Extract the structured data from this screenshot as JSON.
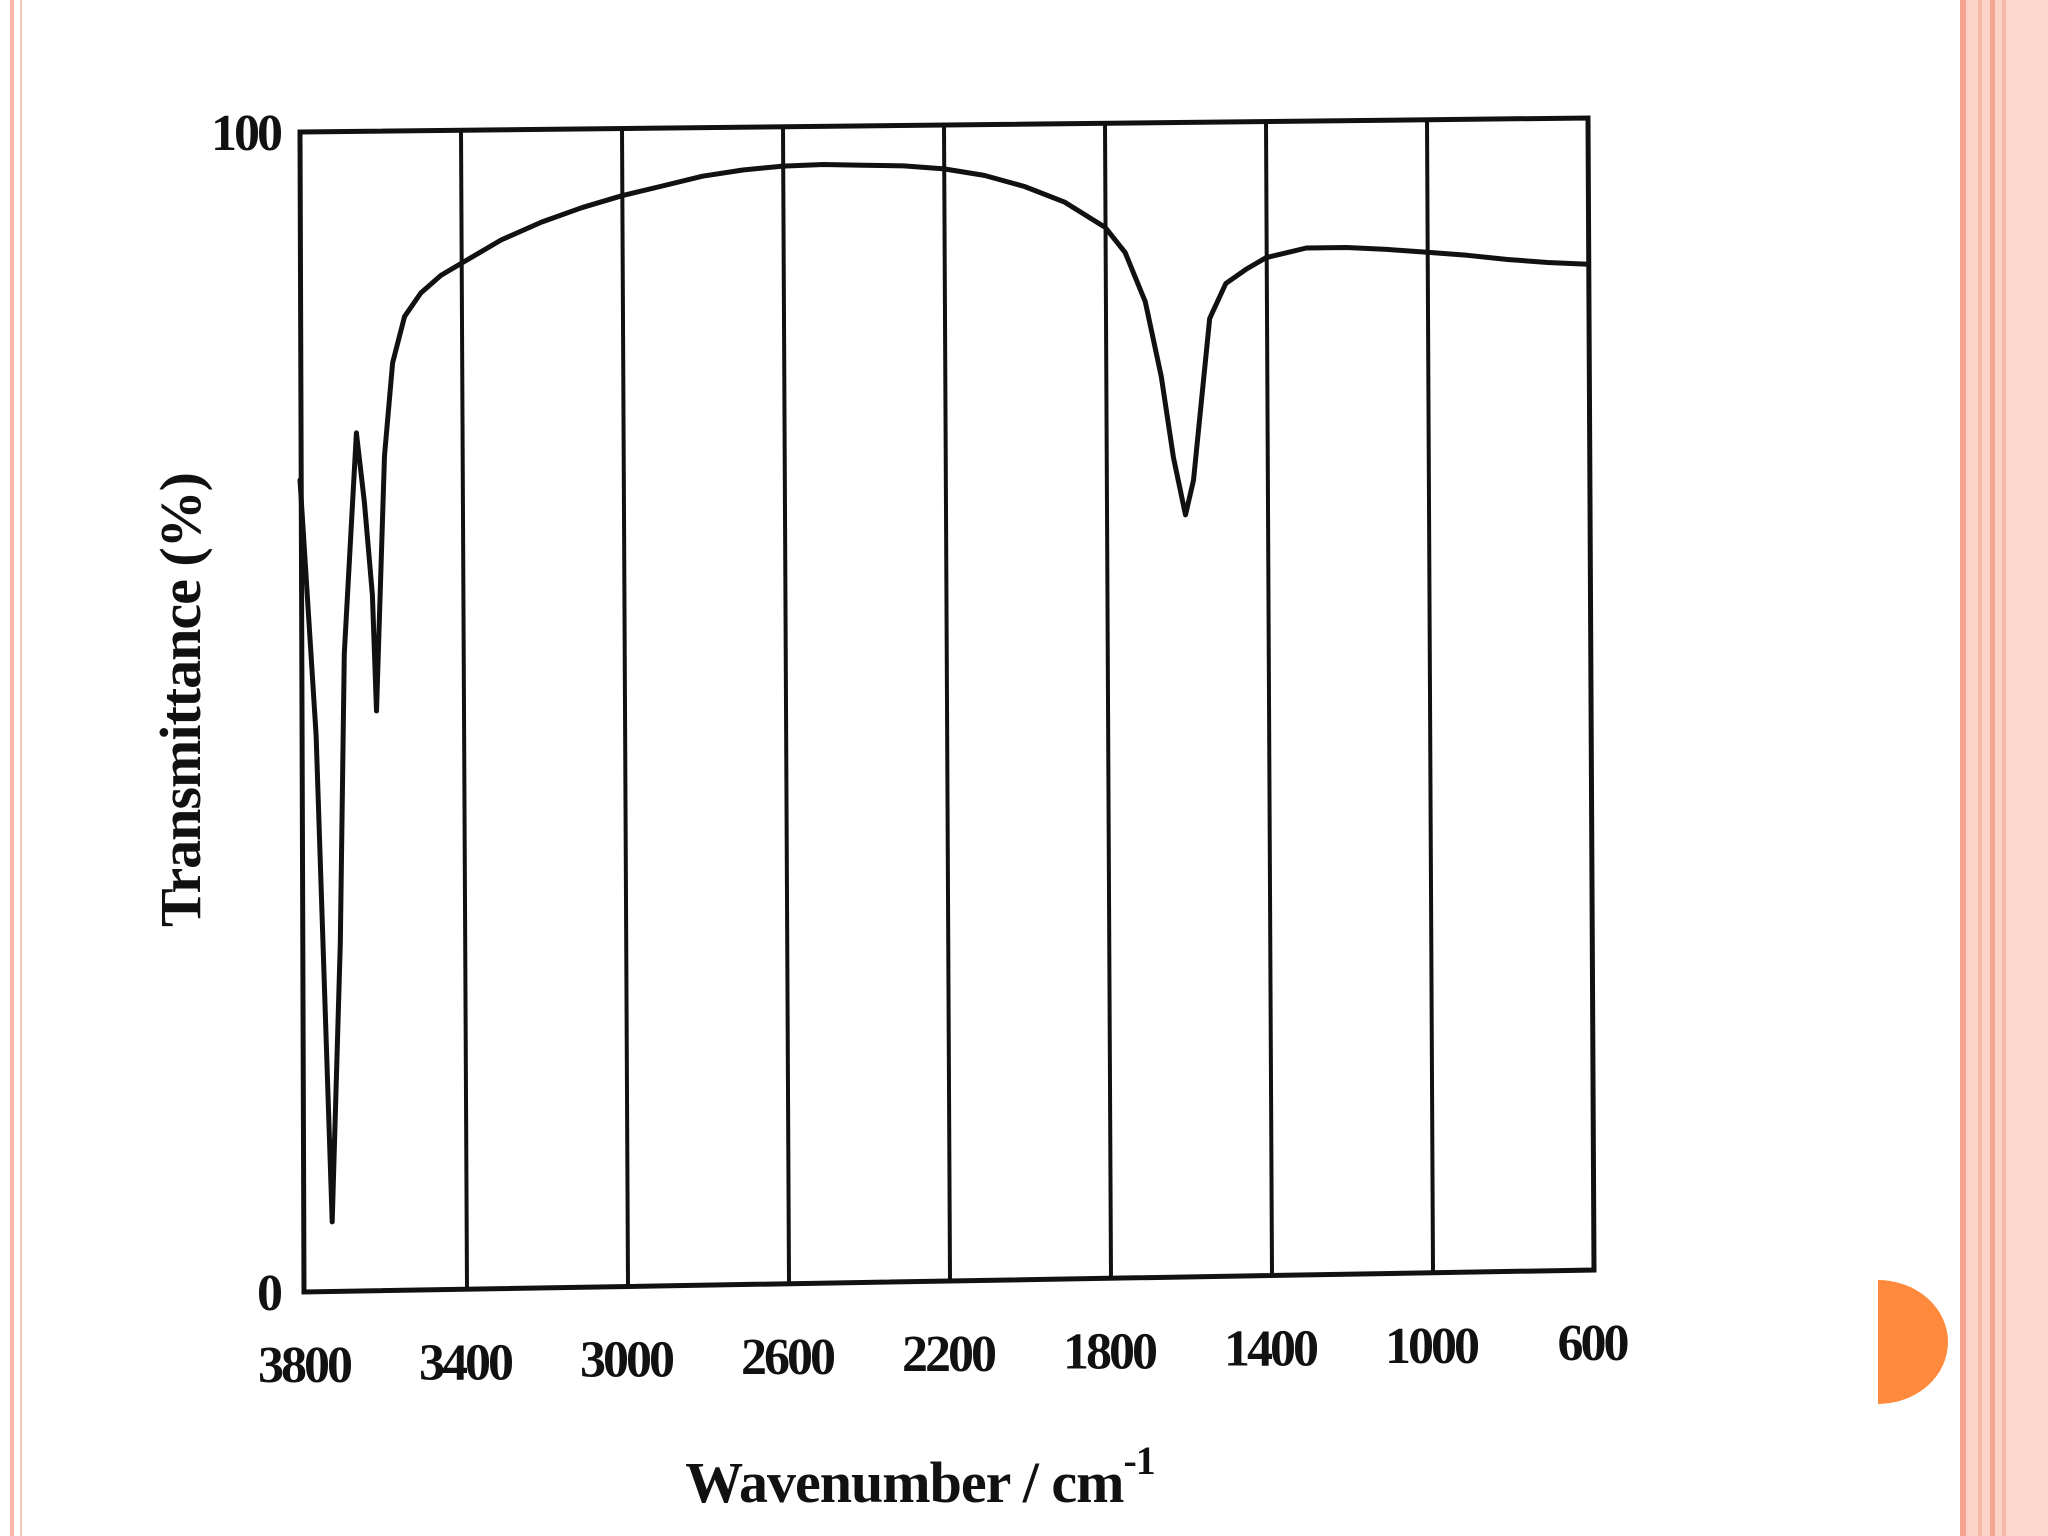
{
  "slide": {
    "border_colors": [
      "#f7b8a8",
      "#f4a48f"
    ],
    "accent_shape_color": "#ff8a3d",
    "accent_shape": "half-circle"
  },
  "chart_data": {
    "type": "line",
    "xlabel": "Wavenumber / cm",
    "xlabel_superscript": "-1",
    "ylabel": "Transmittance  (%)",
    "xlim": [
      3800,
      600
    ],
    "x_reversed": true,
    "ylim": [
      0,
      100
    ],
    "x_ticks": [
      3800,
      3400,
      3000,
      2600,
      2200,
      1800,
      1400,
      1000,
      600
    ],
    "y_ticks": [
      0,
      100
    ],
    "grid": "vertical",
    "line_color": "#111111",
    "series": [
      {
        "x": [
          3800,
          3760,
          3720,
          3700,
          3690,
          3660,
          3640,
          3620,
          3610,
          3590,
          3570,
          3540,
          3500,
          3450,
          3400,
          3300,
          3200,
          3100,
          3000,
          2900,
          2800,
          2700,
          2600,
          2500,
          2400,
          2300,
          2200,
          2100,
          2000,
          1900,
          1800,
          1750,
          1700,
          1660,
          1630,
          1600,
          1580,
          1560,
          1540,
          1500,
          1450,
          1400,
          1300,
          1200,
          1100,
          1000,
          900,
          800,
          700,
          600
        ],
        "y": [
          70,
          48,
          6,
          30,
          55,
          74,
          68,
          60,
          50,
          72,
          80,
          84,
          86,
          87.5,
          88.5,
          90.5,
          92,
          93.2,
          94.2,
          95,
          95.8,
          96.3,
          96.6,
          96.7,
          96.6,
          96.5,
          96.2,
          95.6,
          94.6,
          93.2,
          91,
          88.8,
          84.5,
          78,
          71,
          66,
          69,
          76,
          83,
          86,
          87.2,
          88.2,
          89,
          89,
          88.8,
          88.5,
          88.2,
          87.8,
          87.5,
          87.3
        ]
      }
    ]
  }
}
